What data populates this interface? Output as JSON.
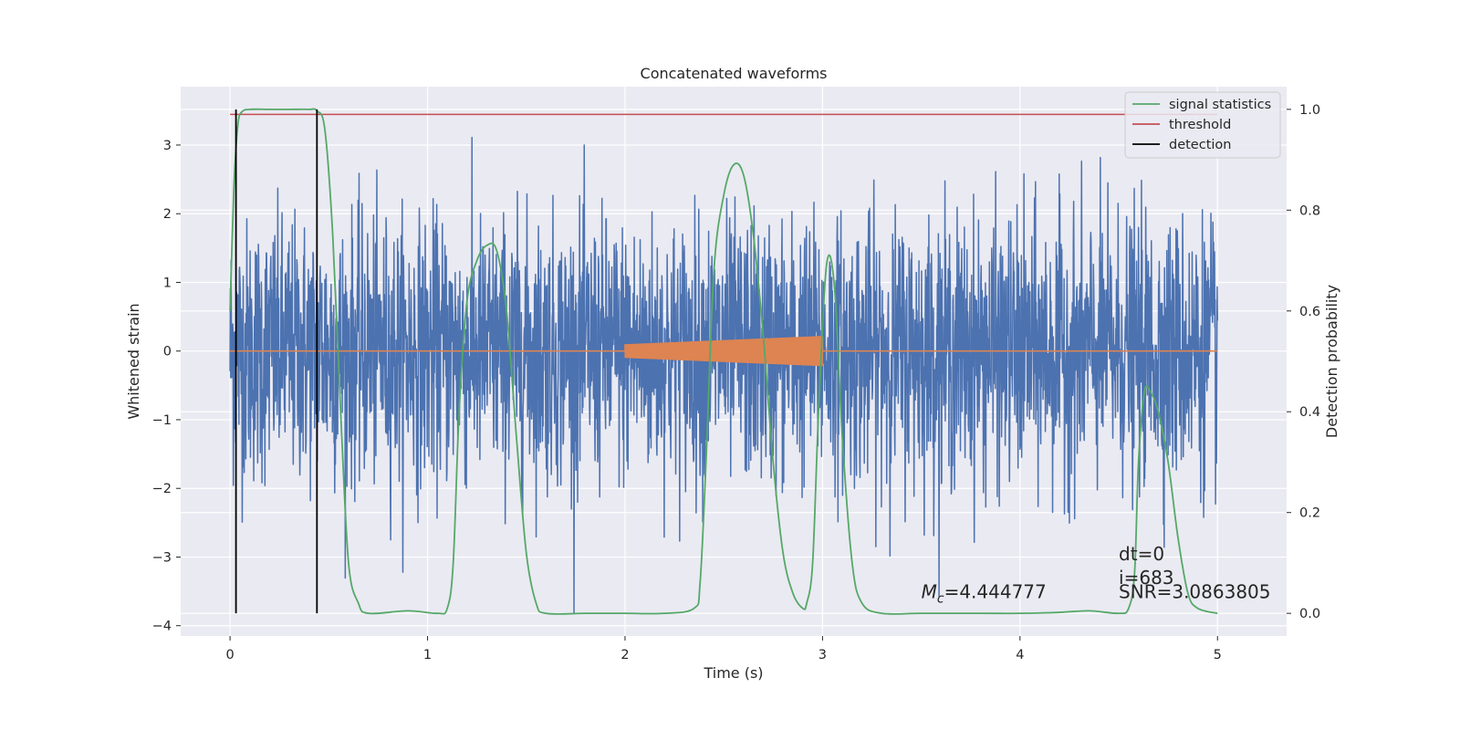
{
  "chart_data": {
    "type": "line",
    "title": "Concatenated waveforms",
    "xlabel": "Time (s)",
    "ylabel": "Whitened strain",
    "y2label": "Detection probability",
    "xlim": [
      -0.25,
      5.35
    ],
    "ylim": [
      -4.15,
      3.85
    ],
    "y2lim": [
      -0.045,
      1.045
    ],
    "x_ticks": [
      0,
      1,
      2,
      3,
      4,
      5
    ],
    "y_ticks": [
      -4,
      -3,
      -2,
      -1,
      0,
      1,
      2,
      3
    ],
    "y2_ticks": [
      0.0,
      0.2,
      0.4,
      0.6,
      0.8,
      1.0
    ],
    "x_tick_labels": [
      "0",
      "1",
      "2",
      "3",
      "4",
      "5"
    ],
    "y_tick_labels": [
      "−4",
      "−3",
      "−2",
      "−1",
      "0",
      "1",
      "2",
      "3"
    ],
    "y2_tick_labels": [
      "0.0",
      "0.2",
      "0.4",
      "0.6",
      "0.8",
      "1.0"
    ],
    "grid": true,
    "legend_position": "top-right",
    "colors": {
      "strain": "#4c72b0",
      "template": "#dd8452",
      "signal": "#55a868",
      "threshold": "#c44e52",
      "detection": "#000000",
      "background": "#eaeaf2"
    },
    "series": [
      {
        "name": "",
        "role": "strain",
        "axis": "left",
        "description_type": "noise",
        "x_range": [
          0,
          5
        ],
        "amplitude_envelope": [
          -4.0,
          3.6
        ]
      },
      {
        "name": "",
        "role": "template",
        "axis": "left",
        "x_start": 2.0,
        "x_end": 3.0,
        "amplitude_start": 0.1,
        "amplitude_end": 0.22,
        "baseline_range": [
          0,
          5
        ]
      },
      {
        "name": "signal statistics",
        "role": "signal",
        "axis": "right",
        "x": [
          0.0,
          0.02,
          0.04,
          0.06,
          0.1,
          0.2,
          0.3,
          0.4,
          0.44,
          0.48,
          0.52,
          0.56,
          0.6,
          0.65,
          0.7,
          0.9,
          1.05,
          1.1,
          1.13,
          1.16,
          1.2,
          1.25,
          1.3,
          1.35,
          1.4,
          1.45,
          1.5,
          1.55,
          1.6,
          1.8,
          2.0,
          2.2,
          2.35,
          2.38,
          2.41,
          2.45,
          2.5,
          2.55,
          2.6,
          2.65,
          2.7,
          2.75,
          2.8,
          2.85,
          2.9,
          2.92,
          2.95,
          2.98,
          3.02,
          3.06,
          3.1,
          3.15,
          3.2,
          3.3,
          3.5,
          3.8,
          4.0,
          4.2,
          4.35,
          4.5,
          4.55,
          4.58,
          4.6,
          4.63,
          4.66,
          4.7,
          4.75,
          4.8,
          4.85,
          4.9,
          5.0
        ],
        "values": [
          0.6,
          0.85,
          0.97,
          0.995,
          1.0,
          1.0,
          1.0,
          1.0,
          0.997,
          0.96,
          0.75,
          0.4,
          0.1,
          0.02,
          0.0,
          0.005,
          0.0,
          0.01,
          0.1,
          0.4,
          0.62,
          0.7,
          0.73,
          0.72,
          0.6,
          0.35,
          0.12,
          0.02,
          0.0,
          0.0,
          0.0,
          0.0,
          0.01,
          0.06,
          0.3,
          0.68,
          0.83,
          0.89,
          0.87,
          0.75,
          0.55,
          0.3,
          0.12,
          0.04,
          0.01,
          0.02,
          0.1,
          0.4,
          0.69,
          0.65,
          0.35,
          0.1,
          0.02,
          0.0,
          0.0,
          0.0,
          0.0,
          0.002,
          0.005,
          0.0,
          0.01,
          0.08,
          0.3,
          0.44,
          0.44,
          0.4,
          0.3,
          0.15,
          0.04,
          0.01,
          0.0
        ]
      },
      {
        "name": "threshold",
        "role": "threshold",
        "axis": "right",
        "x": [
          0,
          5
        ],
        "values": [
          0.99,
          0.99
        ]
      },
      {
        "name": "detection",
        "role": "detection",
        "axis": "right",
        "vertical_lines_x": [
          0.03,
          0.44
        ],
        "y_range": [
          0.0,
          1.0
        ]
      }
    ],
    "annotations": [
      {
        "id": "mc",
        "text": "=4.444777",
        "symbol": "M",
        "subscript": "c",
        "x": 3.5,
        "y": 0.03
      },
      {
        "id": "dt",
        "text": "dt=0",
        "x": 4.5,
        "y": 0.105
      },
      {
        "id": "i",
        "text": "i=683",
        "x": 4.5,
        "y": 0.058
      },
      {
        "id": "snr",
        "text": "SNR=3.0863805",
        "x": 4.5,
        "y": 0.03
      }
    ]
  }
}
